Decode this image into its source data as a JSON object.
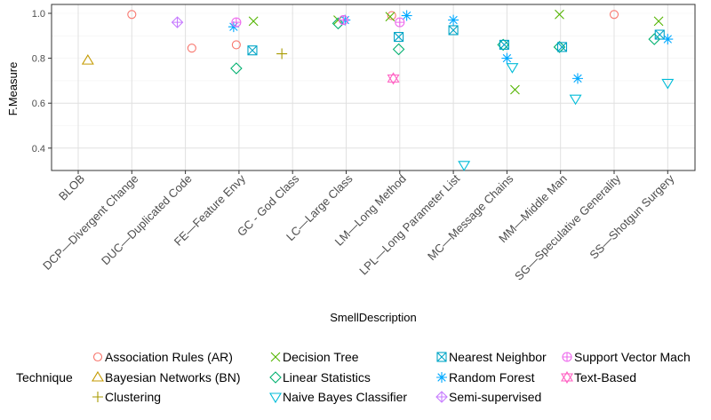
{
  "chart_data": {
    "type": "scatter",
    "xlabel": "SmellDescription",
    "ylabel": "F.Measure",
    "ylim": [
      0.3,
      1.02
    ],
    "yticks": [
      0.4,
      0.6,
      0.8,
      1.0
    ],
    "ytick_labels": [
      "0.4",
      "0.6",
      "0.8",
      "1.0"
    ],
    "grid": true,
    "legend_position": "bottom",
    "legend_title": "Technique",
    "categories": [
      "BLOB",
      "DCP—Divergent Change",
      "DUC—Duplicated Code",
      "FE—Feature Envy",
      "GC - God Class",
      "LC—Large Class",
      "LM—Long Method",
      "LPL—Long Parameter List",
      "MC—Message Chains",
      "MM—Middle Man",
      "SG—Speculative Generality",
      "SS—Shotgun Surgery"
    ],
    "series": [
      {
        "name": "Association Rules (AR)",
        "shape": "circle",
        "color": "#F8766D",
        "points": [
          {
            "x": "DCP—Divergent Change",
            "y": 0.995,
            "dx": 0
          },
          {
            "x": "DUC—Duplicated Code",
            "y": 0.845,
            "dx": 0.12
          },
          {
            "x": "FE—Feature Envy",
            "y": 0.86,
            "dx": -0.05
          },
          {
            "x": "LM—Long Method",
            "y": 0.99,
            "dx": -0.15
          },
          {
            "x": "SG—Speculative Generality",
            "y": 0.995,
            "dx": 0
          }
        ]
      },
      {
        "name": "Bayesian Networks (BN)",
        "shape": "triangle",
        "color": "#C49A00",
        "points": [
          {
            "x": "BLOB",
            "y": 0.79,
            "dx": 0.18
          }
        ]
      },
      {
        "name": "Clustering",
        "shape": "plus",
        "color": "#A89A00",
        "points": [
          {
            "x": "GC - God Class",
            "y": 0.82,
            "dx": -0.2
          }
        ]
      },
      {
        "name": "Decision Tree",
        "shape": "cross",
        "color": "#53B400",
        "points": [
          {
            "x": "FE—Feature Envy",
            "y": 0.965,
            "dx": 0.27
          },
          {
            "x": "LC—Large Class",
            "y": 0.97,
            "dx": -0.15
          },
          {
            "x": "LM—Long Method",
            "y": 0.985,
            "dx": -0.18
          },
          {
            "x": "MC—Message Chains",
            "y": 0.66,
            "dx": 0.15
          },
          {
            "x": "MM—Middle Man",
            "y": 0.995,
            "dx": -0.02
          },
          {
            "x": "SS—Shotgun Surgery",
            "y": 0.965,
            "dx": -0.17
          }
        ]
      },
      {
        "name": "Linear Statistics",
        "shape": "diamond",
        "color": "#00B06F",
        "points": [
          {
            "x": "FE—Feature Envy",
            "y": 0.755,
            "dx": -0.05
          },
          {
            "x": "LC—Large Class",
            "y": 0.955,
            "dx": -0.15
          },
          {
            "x": "LM—Long Method",
            "y": 0.84,
            "dx": -0.02
          },
          {
            "x": "MC—Message Chains",
            "y": 0.86,
            "dx": -0.07
          },
          {
            "x": "MM—Middle Man",
            "y": 0.85,
            "dx": -0.02
          },
          {
            "x": "SS—Shotgun Surgery",
            "y": 0.885,
            "dx": -0.25
          }
        ]
      },
      {
        "name": "Naive Bayes Classifier",
        "shape": "triangle-down",
        "color": "#00BCD8",
        "points": [
          {
            "x": "LPL—Long Parameter List",
            "y": 0.325,
            "dx": 0.2
          },
          {
            "x": "MC—Message Chains",
            "y": 0.76,
            "dx": 0.1
          },
          {
            "x": "MM—Middle Man",
            "y": 0.62,
            "dx": 0.28
          },
          {
            "x": "SS—Shotgun Surgery",
            "y": 0.69,
            "dx": 0
          }
        ]
      },
      {
        "name": "Nearest Neighbor",
        "shape": "square-x",
        "color": "#00A5C6",
        "points": [
          {
            "x": "FE—Feature Envy",
            "y": 0.835,
            "dx": 0.25
          },
          {
            "x": "LM—Long Method",
            "y": 0.895,
            "dx": -0.02
          },
          {
            "x": "LPL—Long Parameter List",
            "y": 0.925,
            "dx": 0
          },
          {
            "x": "MC—Message Chains",
            "y": 0.86,
            "dx": -0.05
          },
          {
            "x": "MM—Middle Man",
            "y": 0.85,
            "dx": 0.03
          },
          {
            "x": "SS—Shotgun Surgery",
            "y": 0.905,
            "dx": -0.15
          }
        ]
      },
      {
        "name": "Random Forest",
        "shape": "asterisk",
        "color": "#00A9FF",
        "points": [
          {
            "x": "FE—Feature Envy",
            "y": 0.94,
            "dx": -0.1
          },
          {
            "x": "LC—Large Class",
            "y": 0.97,
            "dx": -0.02
          },
          {
            "x": "LM—Long Method",
            "y": 0.99,
            "dx": 0.13
          },
          {
            "x": "LPL—Long Parameter List",
            "y": 0.97,
            "dx": 0
          },
          {
            "x": "MC—Message Chains",
            "y": 0.8,
            "dx": 0
          },
          {
            "x": "MM—Middle Man",
            "y": 0.71,
            "dx": 0.32
          },
          {
            "x": "SS—Shotgun Surgery",
            "y": 0.885,
            "dx": 0
          }
        ]
      },
      {
        "name": "Semi-supervised",
        "shape": "diamond-plus",
        "color": "#C77CFF",
        "points": [
          {
            "x": "DUC—Duplicated Code",
            "y": 0.96,
            "dx": -0.15
          }
        ]
      },
      {
        "name": "Support Vector Machine",
        "shape": "circle-plus",
        "color": "#ED68ED",
        "points": [
          {
            "x": "FE—Feature Envy",
            "y": 0.96,
            "dx": -0.05
          },
          {
            "x": "LC—Large Class",
            "y": 0.97,
            "dx": -0.05
          },
          {
            "x": "LM—Long Method",
            "y": 0.96,
            "dx": 0
          }
        ]
      },
      {
        "name": "Text-Based",
        "shape": "star-of-david",
        "color": "#FF61C3",
        "points": [
          {
            "x": "LM—Long Method",
            "y": 0.71,
            "dx": -0.12
          }
        ]
      }
    ]
  },
  "legend": {
    "title": "Technique",
    "items": [
      "Association Rules (AR)",
      "Bayesian Networks (BN)",
      "Clustering",
      "Decision Tree",
      "Linear Statistics",
      "Naive Bayes Classifier",
      "Nearest Neighbor",
      "Random Forest",
      "Semi-supervised",
      "Support Vector Mach",
      "Text-Based"
    ]
  }
}
